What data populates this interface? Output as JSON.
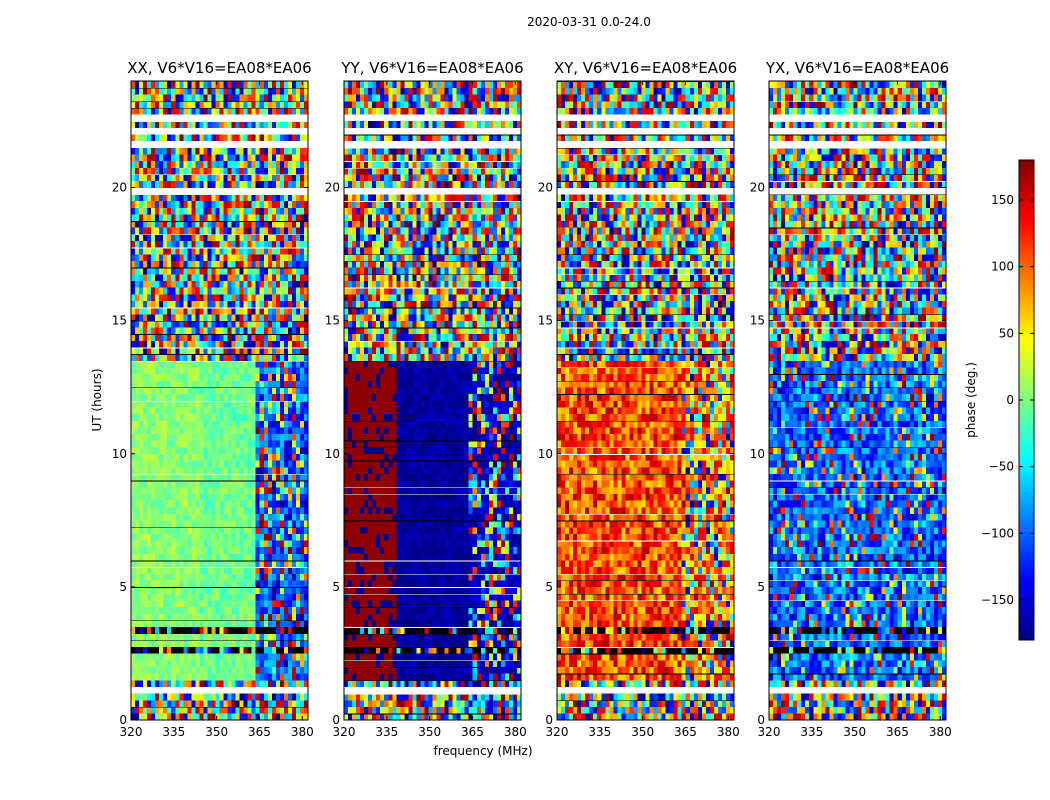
{
  "chart_data": {
    "type": "heatmap",
    "suptitle": "2020-03-31 0.0-24.0",
    "xlabel": "frequency (MHz)",
    "ylabel": "UT (hours)",
    "xlim": [
      320,
      382
    ],
    "ylim": [
      0,
      24
    ],
    "xticks": [
      320,
      335,
      350,
      365,
      380
    ],
    "yticks": [
      0,
      5,
      10,
      15,
      20
    ],
    "panels": [
      {
        "title": "XX, V6*V16=EA08*EA06",
        "pol": "XX"
      },
      {
        "title": "YY, V6*V16=EA08*EA06",
        "pol": "YY"
      },
      {
        "title": "XY, V6*V16=EA08*EA06",
        "pol": "XY"
      },
      {
        "title": "YX, V6*V16=EA08*EA06",
        "pol": "YX"
      }
    ],
    "colorbar": {
      "label": "phase (deg.)",
      "range": [
        -180,
        180
      ],
      "ticks": [
        150,
        100,
        50,
        0,
        -50,
        -100,
        -150
      ],
      "tick_labels": [
        "150",
        "100",
        "50",
        "0",
        "−50",
        "−100",
        "−150"
      ],
      "colormap": "jet"
    },
    "flagged_ut_bands": [
      [
        1.0,
        1.35
      ],
      [
        19.7,
        20.0
      ],
      [
        21.55,
        21.8
      ],
      [
        22.05,
        22.25
      ],
      [
        22.55,
        22.75
      ]
    ],
    "dark_ut_bands": [
      [
        2.55,
        2.7
      ],
      [
        3.35,
        3.45
      ],
      [
        4.7,
        4.78
      ],
      [
        13.4,
        13.5
      ],
      [
        15.4,
        15.5
      ],
      [
        16.5,
        16.6
      ],
      [
        18.2,
        18.3
      ]
    ]
  }
}
